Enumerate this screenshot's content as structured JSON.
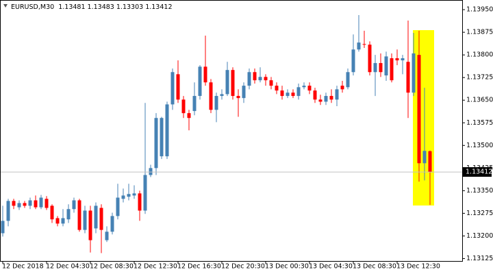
{
  "chart_data": {
    "type": "candlestick",
    "symbol": "EURUSD,M30",
    "x": [
      "12 Dec 2018",
      null,
      null,
      null,
      null,
      null,
      null,
      null,
      "12 Dec 04:30",
      null,
      null,
      null,
      null,
      null,
      null,
      null,
      "12 Dec 08:30",
      null,
      null,
      null,
      null,
      null,
      null,
      null,
      "12 Dec 12:30",
      null,
      null,
      null,
      null,
      null,
      null,
      null,
      "12 Dec 16:30",
      null,
      null,
      null,
      null,
      null,
      null,
      null,
      "12 Dec 20:30",
      null,
      null,
      null,
      null,
      null,
      null,
      null,
      "13 Dec 00:30",
      null,
      null,
      null,
      null,
      null,
      null,
      null,
      "13 Dec 04:30",
      null,
      null,
      null,
      null,
      null,
      null,
      null,
      "13 Dec 08:30",
      null,
      null,
      null,
      null,
      null,
      null,
      null,
      "13 Dec 12:30",
      null,
      null,
      null,
      null,
      null,
      null
    ],
    "open": [
      1.13209,
      1.1325,
      1.13316,
      1.13295,
      1.13309,
      1.133,
      1.13318,
      1.13295,
      1.13323,
      1.133,
      1.13259,
      1.13241,
      1.13255,
      1.13289,
      1.13318,
      1.1322,
      1.13284,
      1.13225,
      1.13293,
      1.13186,
      1.13214,
      1.13266,
      1.13323,
      1.1333,
      1.13334,
      1.13341,
      1.13284,
      1.13402,
      1.13425,
      1.13464,
      1.13464,
      1.13636,
      1.13736,
      1.13652,
      1.13607,
      1.13614,
      1.13664,
      1.13761,
      1.13709,
      1.13618,
      1.13664,
      1.1367,
      1.1375,
      1.13664,
      1.13657,
      1.13698,
      1.13743,
      1.13716,
      1.13727,
      1.13716,
      1.13698,
      1.13682,
      1.13664,
      1.13675,
      1.13664,
      1.13693,
      1.13698,
      1.13682,
      1.13652,
      1.13645,
      1.13664,
      1.13652,
      1.13698,
      1.13693,
      1.13743,
      1.13818,
      1.13836,
      1.13834,
      1.13743,
      1.13773,
      1.13732,
      1.13789,
      1.13789,
      1.13782,
      1.13777,
      1.13675,
      1.138,
      1.13441,
      1.13481
    ],
    "high": [
      1.133,
      1.13323,
      1.13323,
      1.13318,
      1.13316,
      1.13327,
      1.13334,
      1.13336,
      1.13332,
      1.13305,
      1.13266,
      1.13289,
      1.13305,
      1.13327,
      1.13323,
      1.133,
      1.133,
      1.13311,
      1.13305,
      1.13232,
      1.13277,
      1.13373,
      1.13357,
      1.13373,
      1.13368,
      1.1335,
      1.13641,
      1.13436,
      1.13607,
      1.13595,
      1.13645,
      1.13755,
      1.13782,
      1.13664,
      1.13618,
      1.13709,
      1.13766,
      1.13864,
      1.1372,
      1.13675,
      1.13686,
      1.13777,
      1.13759,
      1.13686,
      1.13709,
      1.13755,
      1.13755,
      1.13759,
      1.13736,
      1.13727,
      1.13709,
      1.13698,
      1.13686,
      1.13686,
      1.13705,
      1.13709,
      1.13709,
      1.13691,
      1.13668,
      1.13675,
      1.13686,
      1.13698,
      1.13714,
      1.13755,
      1.13868,
      1.13932,
      1.1388,
      1.13845,
      1.138,
      1.13805,
      1.13811,
      1.13805,
      1.13818,
      1.138,
      1.13914,
      1.13873,
      1.1388,
      1.13691,
      1.13483
    ],
    "low": [
      1.13198,
      1.13232,
      1.13289,
      1.13286,
      1.13293,
      1.13289,
      1.13289,
      1.13289,
      1.13286,
      1.13243,
      1.13232,
      1.13232,
      1.13243,
      1.13277,
      1.13214,
      1.13209,
      1.13145,
      1.13209,
      1.13143,
      1.1318,
      1.13205,
      1.13255,
      1.13311,
      1.13318,
      1.13323,
      1.1325,
      1.13273,
      1.13395,
      1.13402,
      1.13455,
      1.13455,
      1.13618,
      1.13641,
      1.13591,
      1.1355,
      1.136,
      1.13652,
      1.13698,
      1.13607,
      1.13577,
      1.13652,
      1.13664,
      1.13652,
      1.13595,
      1.13641,
      1.13686,
      1.13705,
      1.13709,
      1.13698,
      1.13686,
      1.1367,
      1.13652,
      1.13657,
      1.13657,
      1.13652,
      1.13686,
      1.1367,
      1.13641,
      1.13634,
      1.13634,
      1.13641,
      1.1363,
      1.13675,
      1.13686,
      1.13732,
      1.13811,
      1.13823,
      1.13732,
      1.13664,
      1.13727,
      1.13714,
      1.13709,
      1.13766,
      1.13736,
      1.13591,
      1.13664,
      1.1338,
      1.13384,
      1.13303
    ],
    "close": [
      1.1325,
      1.13316,
      1.133,
      1.13309,
      1.133,
      1.13318,
      1.13295,
      1.13327,
      1.13293,
      1.13255,
      1.13241,
      1.13259,
      1.13289,
      1.13318,
      1.1322,
      1.13284,
      1.13186,
      1.133,
      1.1322,
      1.13214,
      1.13266,
      1.13327,
      1.13334,
      1.13339,
      1.13341,
      1.13284,
      1.13402,
      1.13425,
      1.13591,
      1.13591,
      1.13636,
      1.13743,
      1.13652,
      1.13607,
      1.13591,
      1.13664,
      1.13761,
      1.13709,
      1.13618,
      1.13664,
      1.1367,
      1.1375,
      1.13664,
      1.13657,
      1.13698,
      1.13743,
      1.13716,
      1.13727,
      1.13716,
      1.13698,
      1.13682,
      1.13664,
      1.13675,
      1.13664,
      1.13693,
      1.13698,
      1.13682,
      1.13652,
      1.13645,
      1.13664,
      1.13652,
      1.13686,
      1.13686,
      1.13743,
      1.13818,
      1.13841,
      1.13834,
      1.13743,
      1.13773,
      1.13743,
      1.13795,
      1.13716,
      1.13782,
      1.13789,
      1.13675,
      1.13805,
      1.13441,
      1.13482,
      1.13412
    ],
    "up_color": "#4682b4",
    "down_color": "#ff0000",
    "ylim": [
      1.13117,
      1.13982
    ],
    "yticks": [
      {
        "value": 1.1395,
        "label": "1.13950"
      },
      1.13875,
      {
        "value": 1.138,
        "label": "1.13800"
      },
      1.13725,
      {
        "value": 1.1365,
        "label": "1.13650"
      },
      1.13575,
      {
        "value": 1.135,
        "label": "1.13500"
      },
      1.13425,
      {
        "value": 1.1335,
        "label": "1.13350"
      },
      1.13275,
      {
        "value": 1.132,
        "label": "1.13200"
      },
      1.13125
    ]
  }
}
